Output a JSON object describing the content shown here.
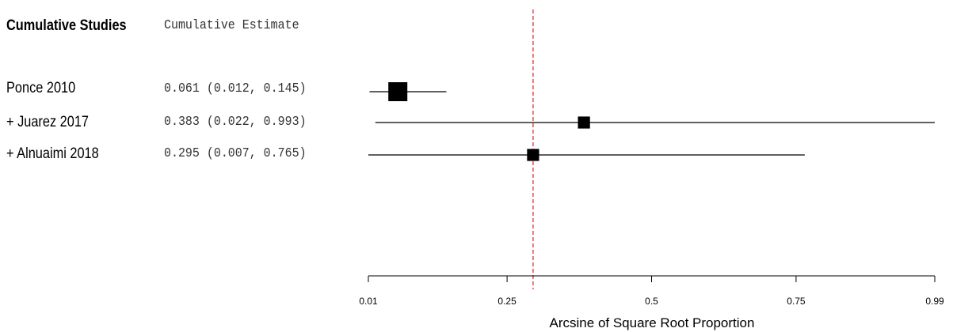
{
  "header": {
    "studies_label": "Cumulative Studies",
    "estimate_label": "Cumulative Estimate"
  },
  "chart_data": {
    "type": "forest",
    "xlabel": "Arcsine of Square Root Proportion",
    "xlim": [
      0.01,
      0.99
    ],
    "ticks": [
      {
        "value": 0.01,
        "label": "0.01"
      },
      {
        "value": 0.25,
        "label": "0.25"
      },
      {
        "value": 0.5,
        "label": "0.5"
      },
      {
        "value": 0.75,
        "label": "0.75"
      },
      {
        "value": 0.99,
        "label": "0.99"
      }
    ],
    "reference_line": 0.295,
    "reference_color": "#e0202a",
    "studies": [
      {
        "label": "Ponce 2010",
        "estimate": 0.061,
        "lower": 0.012,
        "upper": 0.145,
        "text": "0.061 (0.012, 0.145)",
        "weight": 1.0
      },
      {
        "label": "+ Juarez 2017",
        "estimate": 0.383,
        "lower": 0.022,
        "upper": 0.993,
        "text": "0.383 (0.022, 0.993)",
        "weight": 0.45
      },
      {
        "label": "+ Alnuaimi 2018",
        "estimate": 0.295,
        "lower": 0.007,
        "upper": 0.765,
        "text": "0.295 (0.007, 0.765)",
        "weight": 0.45
      }
    ]
  }
}
